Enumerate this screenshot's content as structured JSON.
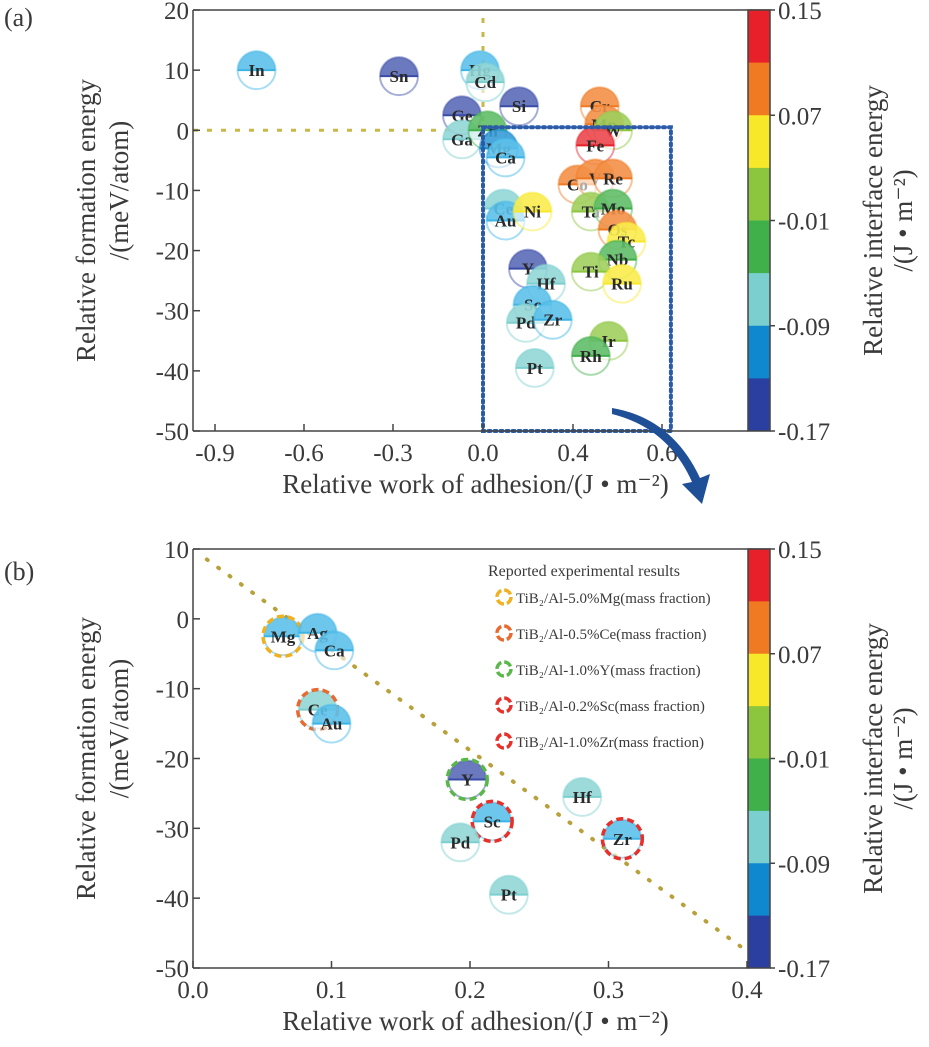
{
  "chart_data": [
    {
      "panel": "(a)",
      "type": "scatter",
      "title": "",
      "xlabel": "Relative work of adhesion/(J • m⁻²)",
      "ylabel": "Relative formation energy /(meV/atom)",
      "x_ticks": [
        "-0.9",
        "-0.6",
        "-0.3",
        "0.0",
        "0.4",
        "0.6"
      ],
      "x_tick_values": [
        -0.9,
        -0.6,
        -0.3,
        0.0,
        0.4,
        0.6
      ],
      "y_ticks": [
        "20",
        "10",
        "0",
        "-10",
        "-20",
        "-30",
        "-40",
        "-50"
      ],
      "y_tick_values": [
        20,
        10,
        0,
        -10,
        -20,
        -30,
        -40,
        -50
      ],
      "xlim": [
        -1.0,
        0.7
      ],
      "ylim": [
        -50,
        20
      ],
      "note": "x axis is piecewise: -0.9..0.0 spaced 0.3 per tick, 0.0..0.6 uneven (0.4 tick between)",
      "grid": false,
      "reference_lines": [
        {
          "kind": "horizontal-dashed",
          "y": 0,
          "color": "#c8b84a"
        },
        {
          "kind": "vertical-dashed",
          "x": 0,
          "color": "#c8b84a"
        }
      ],
      "highlight_box": {
        "x": [
          0.0,
          0.62
        ],
        "y": [
          -50,
          0.5
        ],
        "style": "dotted",
        "color": "#2a5aa8"
      },
      "colorbar": {
        "label": "Relative interface energy /(J • m⁻²)",
        "ticks": [
          "0.15",
          "0.07",
          "-0.01",
          "-0.09",
          "-0.17"
        ],
        "range": [
          -0.17,
          0.15
        ],
        "colors": [
          "#e8202a",
          "#f07a22",
          "#f8e82a",
          "#8cc63e",
          "#40b04a",
          "#7ccfcf",
          "#1088d0",
          "#2a3fa0"
        ]
      },
      "points": [
        {
          "label": "In",
          "x": -0.76,
          "y": 10,
          "color": "#3cb4e6"
        },
        {
          "label": "Sn",
          "x": -0.28,
          "y": 9,
          "color": "#3a4ca8"
        },
        {
          "label": "Hg",
          "x": -0.01,
          "y": 10,
          "color": "#3cb4e6"
        },
        {
          "label": "Cd",
          "x": 0.01,
          "y": 8,
          "color": "#7ccfcf"
        },
        {
          "label": "Si",
          "x": 0.16,
          "y": 4,
          "color": "#3a4ca8"
        },
        {
          "label": "Ge",
          "x": -0.07,
          "y": 2.5,
          "color": "#3a4ca8"
        },
        {
          "label": "Ga",
          "x": -0.07,
          "y": -1.5,
          "color": "#7ccfcf"
        },
        {
          "label": "Zn",
          "x": 0.02,
          "y": 0,
          "color": "#40b04a"
        },
        {
          "label": "Mg",
          "x": 0.07,
          "y": -3,
          "color": "#1088d0"
        },
        {
          "label": "Ca",
          "x": 0.1,
          "y": -4.5,
          "color": "#3cb4e6"
        },
        {
          "label": "Cr",
          "x": 0.46,
          "y": 4,
          "color": "#f07a22"
        },
        {
          "label": "Mn",
          "x": 0.47,
          "y": 1,
          "color": "#f07a22"
        },
        {
          "label": "W",
          "x": 0.49,
          "y": 0,
          "color": "#8cc63e"
        },
        {
          "label": "Fe",
          "x": 0.45,
          "y": -2.5,
          "color": "#e8202a"
        },
        {
          "label": "Co",
          "x": 0.41,
          "y": -9,
          "color": "#f07a22"
        },
        {
          "label": "V",
          "x": 0.45,
          "y": -8,
          "color": "#f07a22"
        },
        {
          "label": "Re",
          "x": 0.49,
          "y": -8,
          "color": "#f07a22"
        },
        {
          "label": "Ce",
          "x": 0.09,
          "y": -13,
          "color": "#7ccfcf"
        },
        {
          "label": "Au",
          "x": 0.1,
          "y": -15,
          "color": "#3cb4e6"
        },
        {
          "label": "Ni",
          "x": 0.22,
          "y": -13.5,
          "color": "#f8e82a"
        },
        {
          "label": "Ta",
          "x": 0.44,
          "y": -13.5,
          "color": "#8cc63e"
        },
        {
          "label": "Mo",
          "x": 0.49,
          "y": -13,
          "color": "#40b04a"
        },
        {
          "label": "Os",
          "x": 0.5,
          "y": -16.5,
          "color": "#f07a22"
        },
        {
          "label": "Tc",
          "x": 0.52,
          "y": -18.5,
          "color": "#f8e82a"
        },
        {
          "label": "Nb",
          "x": 0.5,
          "y": -21.5,
          "color": "#40b04a"
        },
        {
          "label": "Y",
          "x": 0.2,
          "y": -23,
          "color": "#3a4ca8"
        },
        {
          "label": "Hf",
          "x": 0.28,
          "y": -25.5,
          "color": "#7ccfcf"
        },
        {
          "label": "Ti",
          "x": 0.44,
          "y": -23.5,
          "color": "#8cc63e"
        },
        {
          "label": "Ru",
          "x": 0.51,
          "y": -25.5,
          "color": "#f8e82a"
        },
        {
          "label": "Sc",
          "x": 0.22,
          "y": -29,
          "color": "#3cb4e6"
        },
        {
          "label": "Pd",
          "x": 0.19,
          "y": -32,
          "color": "#7ccfcf"
        },
        {
          "label": "Zr",
          "x": 0.31,
          "y": -31.5,
          "color": "#3cb4e6"
        },
        {
          "label": "Ir",
          "x": 0.48,
          "y": -35,
          "color": "#8cc63e"
        },
        {
          "label": "Rh",
          "x": 0.44,
          "y": -37.5,
          "color": "#40b04a"
        },
        {
          "label": "Pt",
          "x": 0.23,
          "y": -39.5,
          "color": "#7ccfcf"
        }
      ]
    },
    {
      "panel": "(b)",
      "type": "scatter",
      "title": "",
      "xlabel": "Relative work of adhesion/(J • m⁻²)",
      "ylabel": "Relative formation energy /(meV/atom)",
      "x_ticks": [
        "0.0",
        "0.1",
        "0.2",
        "0.3",
        "0.4"
      ],
      "x_tick_values": [
        0.0,
        0.1,
        0.2,
        0.3,
        0.4
      ],
      "y_ticks": [
        "10",
        "0",
        "-10",
        "-20",
        "-30",
        "-40",
        "-50"
      ],
      "y_tick_values": [
        10,
        0,
        -10,
        -20,
        -30,
        -40,
        -50
      ],
      "xlim": [
        0.0,
        0.4
      ],
      "ylim": [
        -50,
        10
      ],
      "grid": false,
      "trend_arrow": {
        "from": [
          0.01,
          8.5
        ],
        "to": [
          0.4,
          -50
        ],
        "style": "dotted",
        "color": "#b8a03a"
      },
      "legend": {
        "title": "Reported experimental results",
        "placement": "top-right",
        "items": [
          {
            "label": "TiB₂/Al-5.0%Mg(mass fraction)",
            "color": "#f0b020"
          },
          {
            "label": "TiB₂/Al-0.5%Ce(mass fraction)",
            "color": "#e86a30"
          },
          {
            "label": "TiB₂/Al-1.0%Y(mass fraction)",
            "color": "#5ab84a"
          },
          {
            "label": "TiB₂/Al-0.2%Sc(mass fraction)",
            "color": "#e8302a"
          },
          {
            "label": "TiB₂/Al-1.0%Zr(mass fraction)",
            "color": "#e8302a"
          }
        ]
      },
      "colorbar": {
        "label": "Relative interface energy /(J • m⁻²)",
        "ticks": [
          "0.15",
          "0.07",
          "-0.01",
          "-0.09",
          "-0.17"
        ],
        "range": [
          -0.17,
          0.15
        ],
        "colors": [
          "#e8202a",
          "#f07a22",
          "#f8e82a",
          "#8cc63e",
          "#40b04a",
          "#7ccfcf",
          "#1088d0",
          "#2a3fa0"
        ]
      },
      "points": [
        {
          "label": "Mg",
          "x": 0.065,
          "y": -2.5,
          "color": "#3cb4e6",
          "ring": "#f0b020"
        },
        {
          "label": "Ag",
          "x": 0.09,
          "y": -2,
          "color": "#3cb4e6"
        },
        {
          "label": "Ca",
          "x": 0.102,
          "y": -4.5,
          "color": "#3cb4e6"
        },
        {
          "label": "Ce",
          "x": 0.09,
          "y": -13,
          "color": "#7ccfcf",
          "ring": "#e86a30"
        },
        {
          "label": "Au",
          "x": 0.1,
          "y": -15,
          "color": "#3cb4e6"
        },
        {
          "label": "Y",
          "x": 0.198,
          "y": -23,
          "color": "#3a4ca8",
          "ring": "#5ab84a"
        },
        {
          "label": "Hf",
          "x": 0.281,
          "y": -25.5,
          "color": "#7ccfcf"
        },
        {
          "label": "Sc",
          "x": 0.216,
          "y": -29,
          "color": "#3cb4e6",
          "ring": "#e8302a"
        },
        {
          "label": "Pd",
          "x": 0.193,
          "y": -32,
          "color": "#7ccfcf"
        },
        {
          "label": "Zr",
          "x": 0.31,
          "y": -31.5,
          "color": "#3cb4e6",
          "ring": "#e8302a"
        },
        {
          "label": "Pt",
          "x": 0.228,
          "y": -39.5,
          "color": "#7ccfcf"
        }
      ]
    }
  ]
}
